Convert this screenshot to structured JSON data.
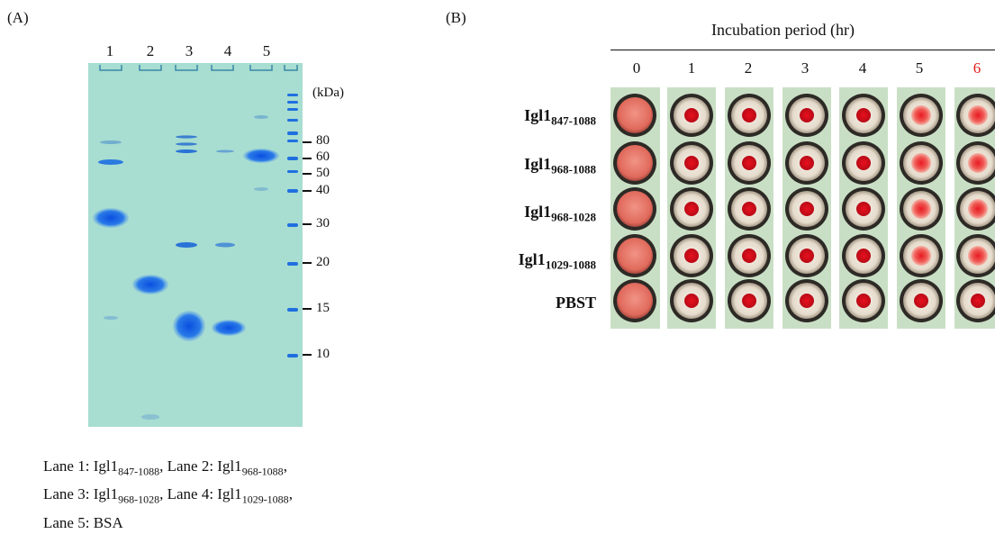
{
  "panel_a": {
    "letter": "(A)",
    "lanes": [
      "1",
      "2",
      "3",
      "4",
      "5"
    ],
    "unit": "(kDa)",
    "markers": [
      "80",
      "60",
      "50",
      "40",
      "30",
      "20",
      "15",
      "10"
    ],
    "caption": {
      "line1_prefix": "Lane 1: Igl1",
      "line1_sub": "847-1088",
      "line1_mid": ", Lane 2: Igl1",
      "line1_sub2": "968-1088",
      "line1_end": ",",
      "line2_prefix": "Lane 3: Igl1",
      "line2_sub": "968-1028",
      "line2_mid": ", Lane 4: Igl1",
      "line2_sub2": "1029-1088",
      "line2_end": ",",
      "line3": "Lane 5: BSA"
    }
  },
  "panel_b": {
    "letter": "(B)",
    "title": "Incubation period (hr)",
    "hours": [
      "0",
      "1",
      "2",
      "3",
      "4",
      "5",
      "6"
    ],
    "highlight_hour_color": "#e0201a",
    "rows": [
      {
        "main": "Igl1",
        "sub": "847-1088"
      },
      {
        "main": "Igl1",
        "sub": "968-1088"
      },
      {
        "main": "Igl1",
        "sub": "968-1028"
      },
      {
        "main": "Igl1",
        "sub": "1029-1088"
      },
      {
        "main": "PBST",
        "sub": ""
      }
    ]
  },
  "colors": {
    "gel_bg": "#a6dcd0",
    "band": "#1f6fe0",
    "well_pink": "#e8766a",
    "dot_red": "#e0101e"
  }
}
